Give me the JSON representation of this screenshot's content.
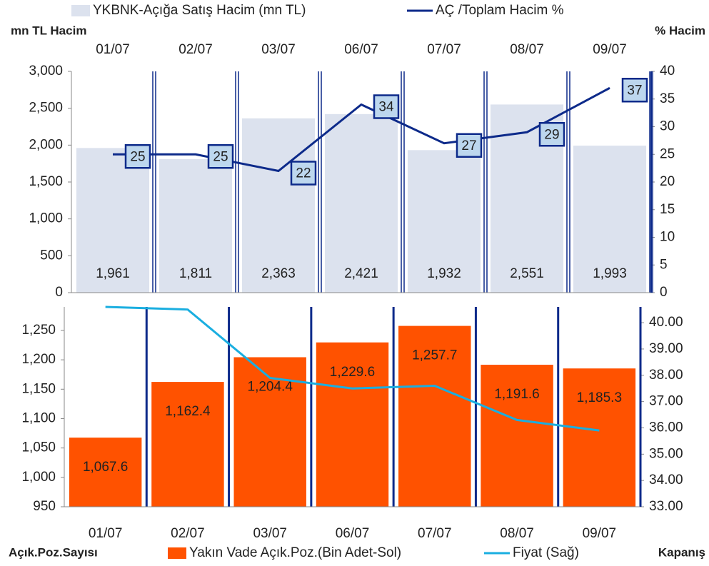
{
  "chart_data": [
    {
      "type": "bar",
      "y_label": "mn TL Hacim",
      "y2_label": "% Hacim",
      "categories": [
        "01/07",
        "02/07",
        "03/07",
        "06/07",
        "07/07",
        "08/07",
        "09/07"
      ],
      "series": [
        {
          "name": "YKBNK-Açığa Satış Hacim (mn TL)",
          "type": "bar",
          "color": "#dce2ee",
          "values": [
            1961,
            1811,
            2363,
            2421,
            1932,
            2551,
            1993
          ],
          "value_labels": [
            "1,961",
            "1,811",
            "2,363",
            "2,421",
            "1,932",
            "2,551",
            "1,993"
          ]
        },
        {
          "name": "AÇ /Toplam Hacim %",
          "type": "line",
          "axis": "y2",
          "color": "#0d2a8a",
          "values": [
            25,
            25,
            22,
            34,
            27,
            29,
            37
          ]
        }
      ],
      "ylim": [
        0,
        3000
      ],
      "yticks": [
        0,
        500,
        {
          "value": 1000,
          "label": "1,000"
        },
        {
          "value": 1500,
          "label": "1,500"
        },
        {
          "value": 2000,
          "label": "2,000"
        },
        {
          "value": 2500,
          "label": "2,500"
        },
        {
          "value": 3000,
          "label": "3,000"
        }
      ],
      "y2lim": [
        0,
        40
      ],
      "y2ticks": [
        0,
        5,
        10,
        15,
        20,
        25,
        30,
        35,
        40
      ]
    },
    {
      "type": "bar",
      "y_label": "Açık.Poz.Sayısı",
      "y2_label": "Kapanış",
      "categories": [
        "01/07",
        "02/07",
        "03/07",
        "06/07",
        "07/07",
        "08/07",
        "09/07"
      ],
      "series": [
        {
          "name": "Yakın Vade Açık.Poz.(Bin Adet-Sol)",
          "type": "bar",
          "color": "#ff5200",
          "values": [
            1067.6,
            1162.4,
            1204.4,
            1229.6,
            1257.7,
            1191.6,
            1185.3
          ],
          "value_labels": [
            "1,067.6",
            "1,162.4",
            "1,204.4",
            "1,229.6",
            "1,257.7",
            "1,191.6",
            "1,185.3"
          ]
        },
        {
          "name": "Fiyat (Sağ)",
          "type": "line",
          "axis": "y2",
          "color": "#1aaee0",
          "values": [
            40.6,
            40.5,
            37.9,
            37.5,
            37.6,
            36.3,
            35.9
          ]
        }
      ],
      "ylim": [
        950,
        1290
      ],
      "yticks": [
        950,
        {
          "value": 1000,
          "label": "1,000"
        },
        {
          "value": 1050,
          "label": "1,050"
        },
        {
          "value": 1100,
          "label": "1,100"
        },
        {
          "value": 1150,
          "label": "1,150"
        },
        {
          "value": 1200,
          "label": "1,200"
        },
        {
          "value": 1250,
          "label": "1,250"
        }
      ],
      "y2lim": [
        33,
        40.6
      ],
      "y2ticks": [
        {
          "value": 33,
          "label": "33.00"
        },
        {
          "value": 34,
          "label": "34.00"
        },
        {
          "value": 35,
          "label": "35.00"
        },
        {
          "value": 36,
          "label": "36.00"
        },
        {
          "value": 37,
          "label": "37.00"
        },
        {
          "value": 38,
          "label": "38.00"
        },
        {
          "value": 39,
          "label": "39.00"
        },
        {
          "value": 40,
          "label": "40.00"
        }
      ]
    }
  ]
}
